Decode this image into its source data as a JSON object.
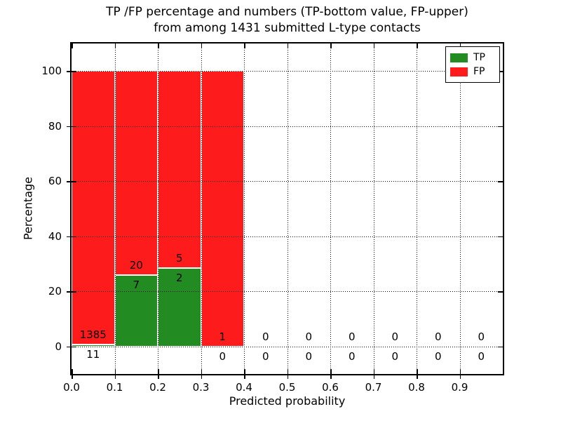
{
  "figure": {
    "title_line1": "TP /FP percentage and numbers (TP-bottom value, FP-upper)",
    "title_line2": "from among 1431 submitted L-type contacts"
  },
  "chart_data": {
    "type": "bar",
    "subtype": "stacked-percentage-histogram",
    "title": "TP /FP percentage and numbers (TP-bottom value, FP-upper) from among 1431 submitted L-type contacts",
    "xlabel": "Predicted probability",
    "ylabel": "Percentage",
    "xlim": [
      0,
      1.0
    ],
    "ylim": [
      -10,
      110
    ],
    "grid": true,
    "grid_style": "dotted",
    "legend_position": "upper right",
    "legend": [
      {
        "label": "TP",
        "color": "#228b22"
      },
      {
        "label": "FP",
        "color": "#fe1b1b"
      }
    ],
    "colors": {
      "tp": "#228b22",
      "fp": "#fe1b1b",
      "bar_edge": "#ffffff",
      "grid": "#000000",
      "text": "#000000",
      "background": "#ffffff"
    },
    "yticks": [
      {
        "value": 0,
        "label": "0"
      },
      {
        "value": 20,
        "label": "20"
      },
      {
        "value": 40,
        "label": "40"
      },
      {
        "value": 60,
        "label": "60"
      },
      {
        "value": 80,
        "label": "80"
      },
      {
        "value": 100,
        "label": "100"
      }
    ],
    "xticks": [
      {
        "value": 0.0,
        "label": "0.0"
      },
      {
        "value": 0.1,
        "label": "0.1"
      },
      {
        "value": 0.2,
        "label": "0.2"
      },
      {
        "value": 0.3,
        "label": "0.3"
      },
      {
        "value": 0.4,
        "label": "0.4"
      },
      {
        "value": 0.5,
        "label": "0.5"
      },
      {
        "value": 0.6,
        "label": "0.6"
      },
      {
        "value": 0.7,
        "label": "0.7"
      },
      {
        "value": 0.8,
        "label": "0.8"
      },
      {
        "value": 0.9,
        "label": "0.9"
      }
    ],
    "bin_width": 0.1,
    "bins": [
      {
        "x_start": 0.0,
        "x_end": 0.1,
        "tp_count": 11,
        "fp_count": 1385,
        "tp_pct": 0.79,
        "fp_pct": 99.21
      },
      {
        "x_start": 0.1,
        "x_end": 0.2,
        "tp_count": 7,
        "fp_count": 20,
        "tp_pct": 25.93,
        "fp_pct": 74.07
      },
      {
        "x_start": 0.2,
        "x_end": 0.3,
        "tp_count": 2,
        "fp_count": 5,
        "tp_pct": 28.57,
        "fp_pct": 71.43
      },
      {
        "x_start": 0.3,
        "x_end": 0.4,
        "tp_count": 0,
        "fp_count": 1,
        "tp_pct": 0,
        "fp_pct": 100
      },
      {
        "x_start": 0.4,
        "x_end": 0.5,
        "tp_count": 0,
        "fp_count": 0,
        "tp_pct": 0,
        "fp_pct": 0
      },
      {
        "x_start": 0.5,
        "x_end": 0.6,
        "tp_count": 0,
        "fp_count": 0,
        "tp_pct": 0,
        "fp_pct": 0
      },
      {
        "x_start": 0.6,
        "x_end": 0.7,
        "tp_count": 0,
        "fp_count": 0,
        "tp_pct": 0,
        "fp_pct": 0
      },
      {
        "x_start": 0.7,
        "x_end": 0.8,
        "tp_count": 0,
        "fp_count": 0,
        "tp_pct": 0,
        "fp_pct": 0
      },
      {
        "x_start": 0.8,
        "x_end": 0.9,
        "tp_count": 0,
        "fp_count": 0,
        "tp_pct": 0,
        "fp_pct": 0
      },
      {
        "x_start": 0.9,
        "x_end": 1.0,
        "tp_count": 0,
        "fp_count": 0,
        "tp_pct": 0,
        "fp_pct": 0
      }
    ]
  }
}
